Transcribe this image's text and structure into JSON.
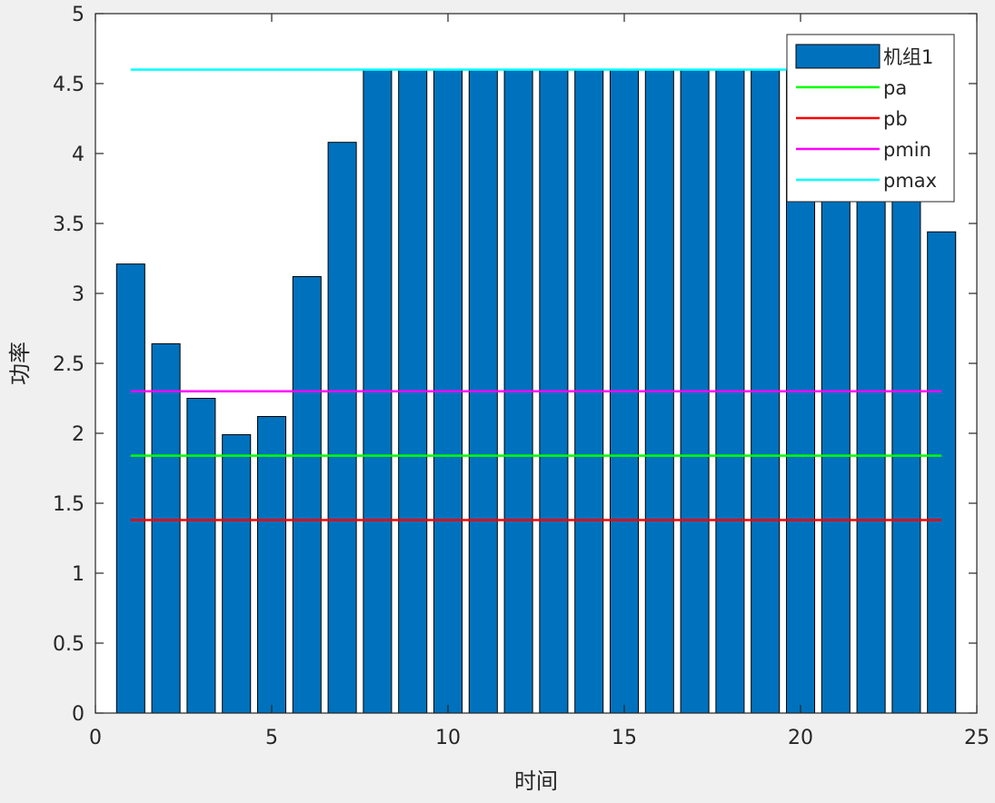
{
  "chart_data": {
    "type": "bar",
    "xlabel": "时间",
    "ylabel": "功率",
    "xlim": [
      0,
      25
    ],
    "ylim": [
      0,
      5
    ],
    "grid": false,
    "x_ticks": [
      0,
      5,
      10,
      15,
      20,
      25
    ],
    "y_ticks": [
      0,
      0.5,
      1,
      1.5,
      2,
      2.5,
      3,
      3.5,
      4,
      4.5,
      5
    ],
    "x_tick_labels": [
      "0",
      "5",
      "10",
      "15",
      "20",
      "25"
    ],
    "y_tick_labels": [
      "0",
      "0.5",
      "1",
      "1.5",
      "2",
      "2.5",
      "3",
      "3.5",
      "4",
      "4.5",
      "5"
    ],
    "legend_position": "top-right",
    "bars": {
      "name": "机组1",
      "color": "#0072bd",
      "x": [
        1,
        2,
        3,
        4,
        5,
        6,
        7,
        8,
        9,
        10,
        11,
        12,
        13,
        14,
        15,
        16,
        17,
        18,
        19,
        20,
        21,
        22,
        23,
        24
      ],
      "values": [
        3.21,
        2.64,
        2.25,
        1.99,
        2.12,
        3.12,
        4.08,
        4.6,
        4.6,
        4.6,
        4.6,
        4.6,
        4.6,
        4.6,
        4.6,
        4.6,
        4.6,
        4.6,
        4.6,
        4.6,
        4.6,
        4.6,
        4.6,
        3.44
      ]
    },
    "series": [
      {
        "name": "pa",
        "type": "line",
        "color": "#00ff00",
        "x": [
          1,
          24
        ],
        "values": [
          1.84,
          1.84
        ]
      },
      {
        "name": "pb",
        "type": "line",
        "color": "#ff0000",
        "x": [
          1,
          24
        ],
        "values": [
          1.38,
          1.38
        ]
      },
      {
        "name": "pmin",
        "type": "line",
        "color": "#ff00ff",
        "x": [
          1,
          24
        ],
        "values": [
          2.3,
          2.3
        ]
      },
      {
        "name": "pmax",
        "type": "line",
        "color": "#00ffff",
        "x": [
          1,
          24
        ],
        "values": [
          4.6,
          4.6
        ]
      }
    ]
  }
}
